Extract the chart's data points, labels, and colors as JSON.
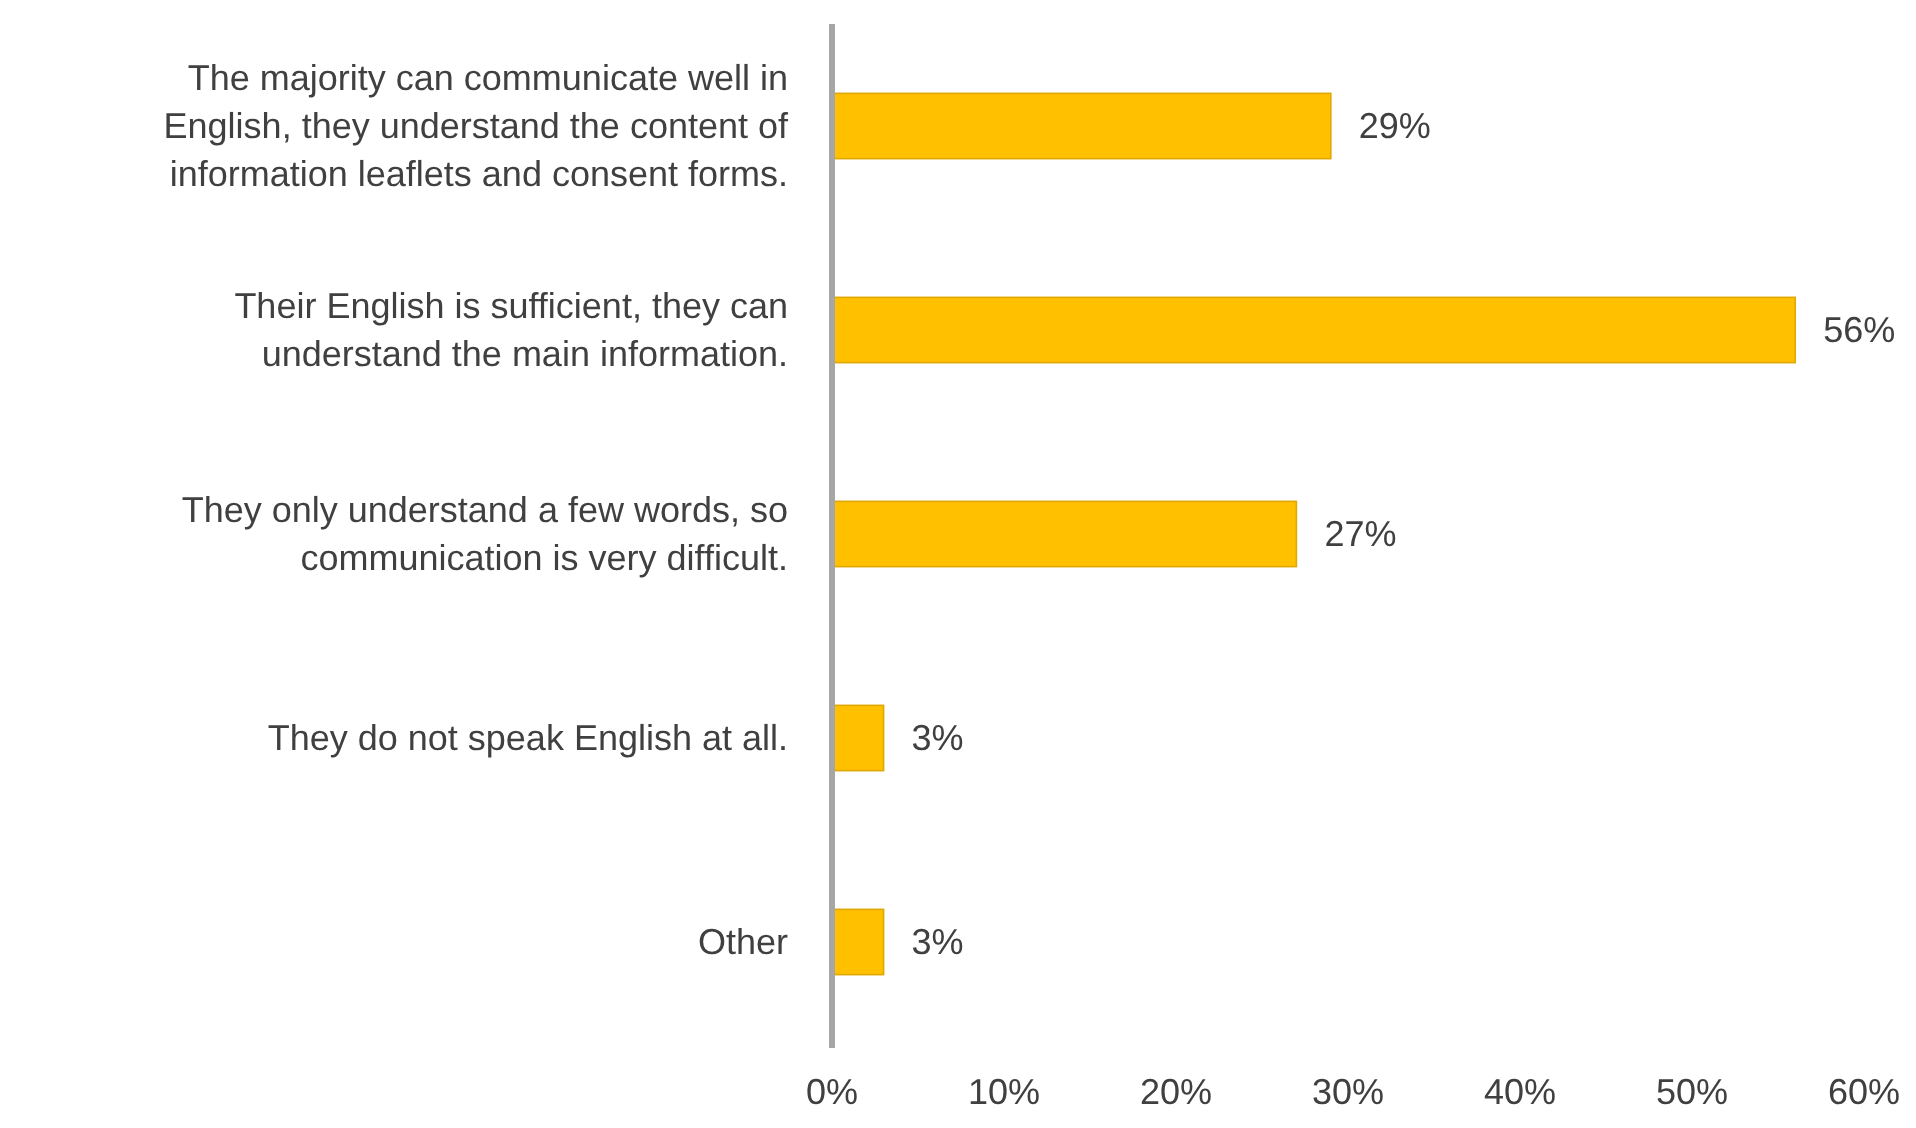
{
  "chart_data": {
    "type": "bar",
    "orientation": "horizontal",
    "categories": [
      "The majority can communicate well in English, they understand the content of information leaflets and consent forms.",
      "Their English is sufficient, they can understand the main information.",
      "They only understand a few words, so communication is very difficult.",
      "They do not speak English at all.",
      "Other"
    ],
    "values": [
      29,
      56,
      27,
      3,
      3
    ],
    "color": "#ffc000",
    "value_labels": [
      "29%",
      "56%",
      "27%",
      "3%",
      "3%"
    ],
    "xlim": [
      0,
      60
    ],
    "xticks": [
      {
        "value": 0,
        "label": "0%"
      },
      {
        "value": 10,
        "label": "10%"
      },
      {
        "value": 20,
        "label": "20%"
      },
      {
        "value": 30,
        "label": "30%"
      },
      {
        "value": 40,
        "label": "40%"
      },
      {
        "value": 50,
        "label": "50%"
      },
      {
        "value": 60,
        "label": "60%"
      }
    ],
    "grid": false
  }
}
